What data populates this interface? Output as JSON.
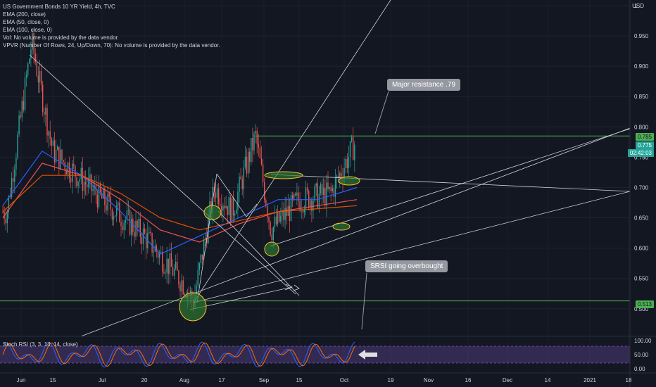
{
  "header": {
    "symbol_line": "US Government Bonds 10 YR Yield, 4h, TVC",
    "indicators": [
      "EMA (200, close)",
      "EMA (50, close, 0)",
      "EMA (100, close, 0)",
      "Vol: No volume is provided by the data vendor.",
      "VPVR (Number Of Rows, 24, Up/Down, 70): No volume is provided by the data vendor."
    ]
  },
  "currency": "USD",
  "price_axis": {
    "ticks": [
      "1",
      "0.950",
      "0.900",
      "0.850",
      "0.800",
      "0.750",
      "0.700",
      "0.650",
      "0.600",
      "0.550",
      "0.500"
    ],
    "tick_values": [
      1.0,
      0.95,
      0.9,
      0.85,
      0.8,
      0.75,
      0.7,
      0.65,
      0.6,
      0.55,
      0.5
    ],
    "ylim": [
      0.48,
      1.0
    ]
  },
  "price_tags": {
    "resistance": "0.785",
    "current": "0.775",
    "countdown": "02:42:03",
    "support": "0.513"
  },
  "colors": {
    "background": "#131722",
    "up_candle": "#26a69a",
    "down_candle": "#ef5350",
    "ema_50": "#2962ff",
    "ema_100": "#ef5350",
    "ema_200": "#e65100",
    "level_lines": "#4caf50",
    "trend_lines": "#d1d4dc",
    "stoch_band": "#7e57c2",
    "stoch_k": "#2962ff",
    "stoch_d": "#ff6d00"
  },
  "annotations": {
    "resistance_note": "Major resistance .79",
    "stoch_note": "SRSI going overbought"
  },
  "stoch": {
    "label": "Stoch RSI (3, 3, 14, 14, close)",
    "ticks": [
      "100.00",
      "50.00",
      "0.00"
    ],
    "tick_values": [
      100,
      50,
      0
    ],
    "upper_band": 80,
    "lower_band": 20
  },
  "time_axis": {
    "labels": [
      "Jun",
      "15",
      "Jul",
      "20",
      "Aug",
      "17",
      "Sep",
      "15",
      "Oct",
      "19",
      "Nov",
      "16",
      "Dec",
      "14",
      "2021",
      "18"
    ]
  },
  "chart_data": {
    "type": "candlestick",
    "title": "US Government Bonds 10 YR Yield, 4h, TVC",
    "ylim": [
      0.48,
      1.0
    ],
    "key_points": [
      {
        "label": "Jun",
        "y": 0.66
      },
      {
        "label": "Jun high",
        "y": 0.94
      },
      {
        "label": "15",
        "y": 0.76
      },
      {
        "label": "Jul",
        "y": 0.68
      },
      {
        "label": "20",
        "y": 0.62
      },
      {
        "label": "Aug",
        "y": 0.54
      },
      {
        "label": "Aug low",
        "y": 0.513
      },
      {
        "label": "mid Aug",
        "y": 0.7
      },
      {
        "label": "17",
        "y": 0.66
      },
      {
        "label": "late Aug",
        "y": 0.785
      },
      {
        "label": "Sep",
        "y": 0.63
      },
      {
        "label": "mid Sep",
        "y": 0.68
      },
      {
        "label": "Oct",
        "y": 0.69
      },
      {
        "label": "last",
        "y": 0.775
      }
    ],
    "series": [
      {
        "name": "EMA (50, close, 0)",
        "values": [
          0.67,
          0.76,
          0.72,
          0.66,
          0.59,
          0.62,
          0.65,
          0.68,
          0.68,
          0.7
        ]
      },
      {
        "name": "EMA (100, close, 0)",
        "values": [
          0.65,
          0.74,
          0.72,
          0.68,
          0.63,
          0.61,
          0.64,
          0.66,
          0.67,
          0.68
        ]
      },
      {
        "name": "EMA (200, close)",
        "values": [
          0.66,
          0.72,
          0.72,
          0.69,
          0.65,
          0.63,
          0.645,
          0.66,
          0.665,
          0.67
        ]
      }
    ],
    "levels": [
      0.785,
      0.513
    ]
  }
}
